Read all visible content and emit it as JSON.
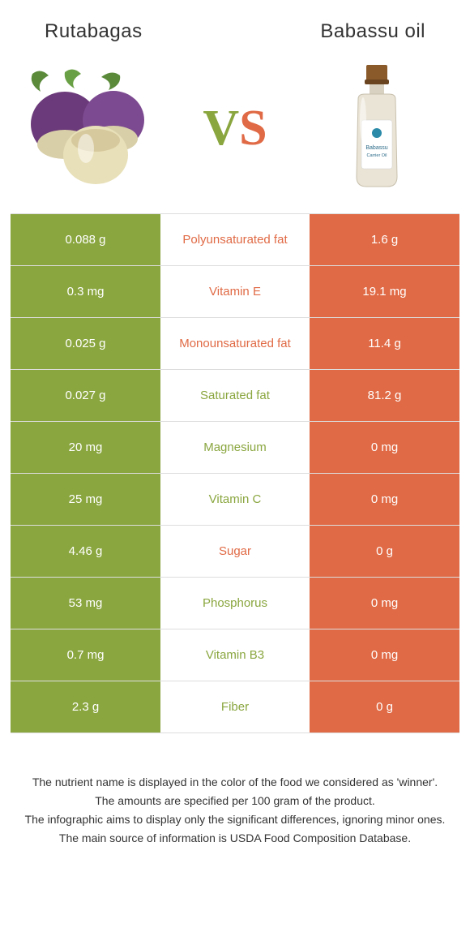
{
  "left_title": "Rutabagas",
  "right_title": "Babassu oil",
  "colors": {
    "green": "#8aa63f",
    "orange": "#e06a45",
    "text": "#333333",
    "border": "#dddddd",
    "white": "#ffffff"
  },
  "rows": [
    {
      "left": "0.088 g",
      "mid": "Polyunsaturated fat",
      "right": "1.6 g",
      "winner": "orange"
    },
    {
      "left": "0.3 mg",
      "mid": "Vitamin E",
      "right": "19.1 mg",
      "winner": "orange"
    },
    {
      "left": "0.025 g",
      "mid": "Monounsaturated fat",
      "right": "11.4 g",
      "winner": "orange"
    },
    {
      "left": "0.027 g",
      "mid": "Saturated fat",
      "right": "81.2 g",
      "winner": "green"
    },
    {
      "left": "20 mg",
      "mid": "Magnesium",
      "right": "0 mg",
      "winner": "green"
    },
    {
      "left": "25 mg",
      "mid": "Vitamin C",
      "right": "0 mg",
      "winner": "green"
    },
    {
      "left": "4.46 g",
      "mid": "Sugar",
      "right": "0 g",
      "winner": "orange"
    },
    {
      "left": "53 mg",
      "mid": "Phosphorus",
      "right": "0 mg",
      "winner": "green"
    },
    {
      "left": "0.7 mg",
      "mid": "Vitamin B3",
      "right": "0 mg",
      "winner": "green"
    },
    {
      "left": "2.3 g",
      "mid": "Fiber",
      "right": "0 g",
      "winner": "green"
    }
  ],
  "footer": [
    "The nutrient name is displayed in the color of the food we considered as 'winner'.",
    "The amounts are specified per 100 gram of the product.",
    "The infographic aims to display only the significant differences, ignoring minor ones.",
    "The main source of information is USDA Food Composition Database."
  ]
}
